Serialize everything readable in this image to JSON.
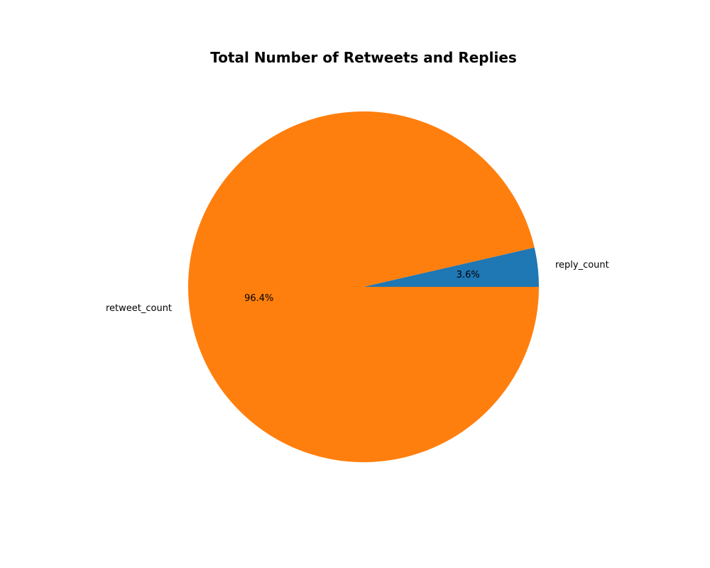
{
  "chart_data": {
    "type": "pie",
    "title": "Total Number of Retweets and Replies",
    "categories": [
      "reply_count",
      "retweet_count"
    ],
    "values": [
      3.6,
      96.4
    ],
    "percent_labels": [
      "3.6%",
      "96.4%"
    ],
    "colors": [
      "#1f77b4",
      "#ff7f0e"
    ],
    "start_angle_deg": 0,
    "direction": "counterclockwise",
    "legend": "none"
  }
}
